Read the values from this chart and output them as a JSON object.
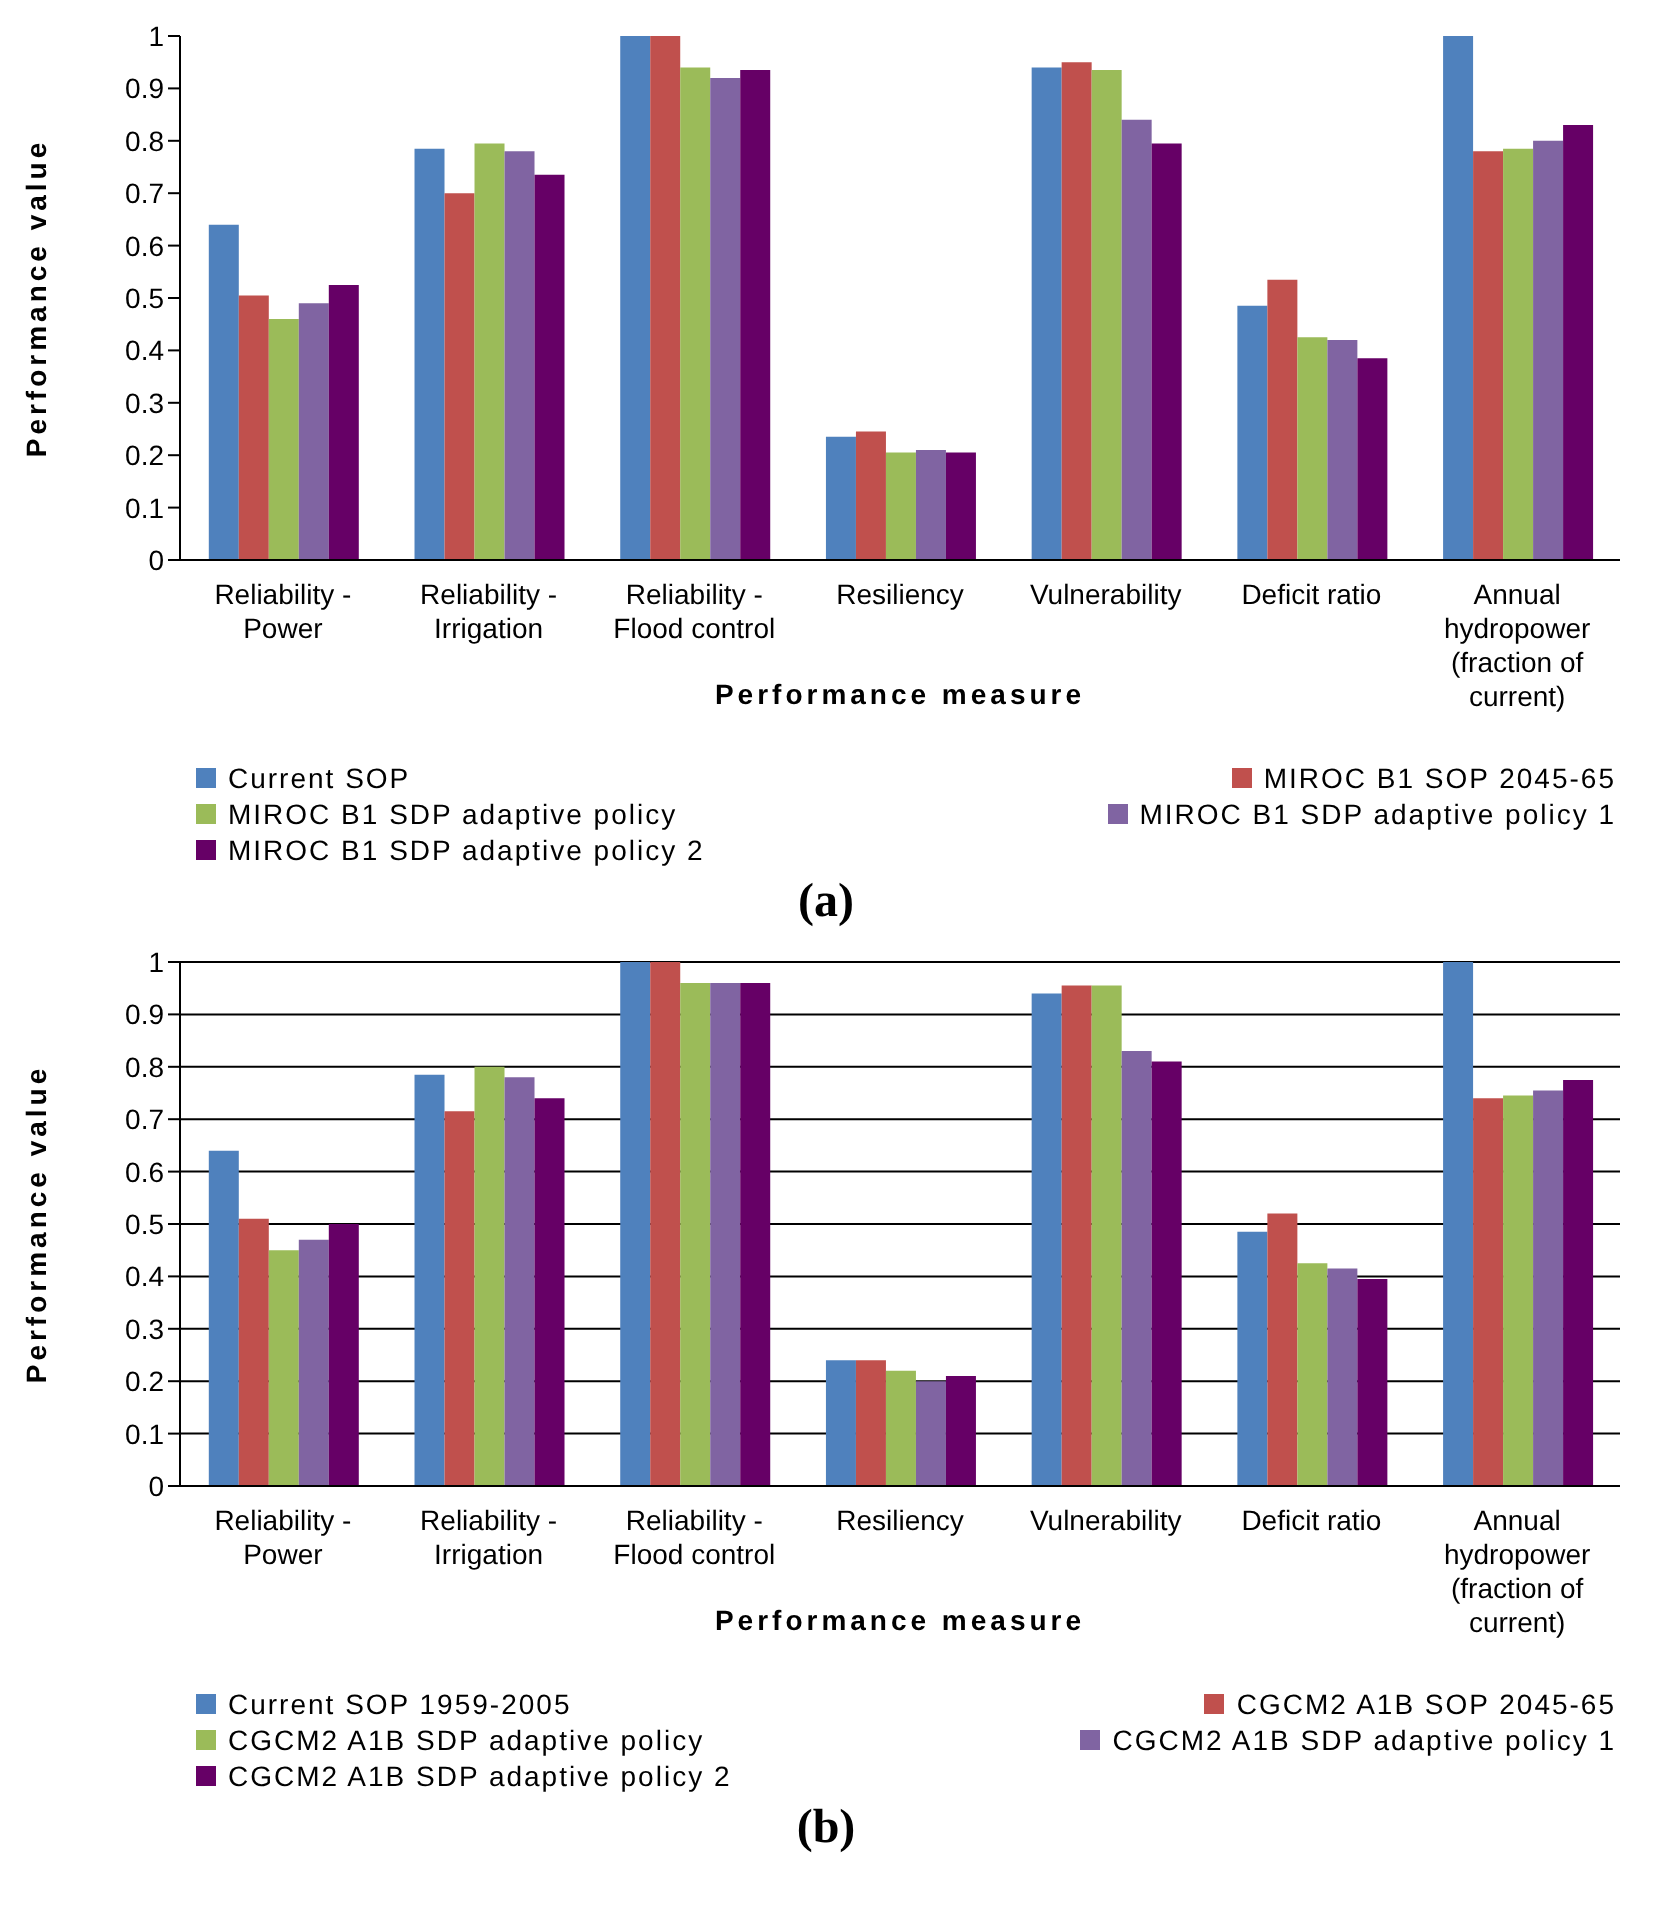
{
  "chart_data": [
    {
      "type": "bar",
      "title": "(a)",
      "xlabel": "Performance measure",
      "ylabel": "Performance value",
      "categories": [
        "Reliability - Power",
        "Reliability - Irrigation",
        "Reliability - Flood control",
        "Resiliency",
        "Vulnerability",
        "Deficit ratio",
        "Annual hydropower (fraction of current)"
      ],
      "series": [
        {
          "name": "Current SOP",
          "color": "#4f81bd",
          "values": [
            0.64,
            0.785,
            1,
            0.235,
            0.94,
            0.485,
            1
          ]
        },
        {
          "name": "MIROC B1 SOP 2045-65",
          "color": "#c0504d",
          "values": [
            0.505,
            0.7,
            1,
            0.245,
            0.95,
            0.535,
            0.78
          ]
        },
        {
          "name": "MIROC B1 SDP adaptive policy",
          "color": "#9bbb59",
          "values": [
            0.46,
            0.795,
            0.94,
            0.205,
            0.935,
            0.425,
            0.785
          ]
        },
        {
          "name": "MIROC B1 SDP adaptive policy 1",
          "color": "#8064a2",
          "values": [
            0.49,
            0.78,
            0.92,
            0.21,
            0.84,
            0.42,
            0.8
          ]
        },
        {
          "name": "MIROC B1 SDP adaptive policy 2",
          "color": "#660066",
          "values": [
            0.525,
            0.735,
            0.935,
            0.205,
            0.795,
            0.385,
            0.83
          ]
        }
      ],
      "ylim": [
        0,
        1
      ],
      "yticks": [
        0,
        0.1,
        0.2,
        0.3,
        0.4,
        0.5,
        0.6,
        0.7,
        0.8,
        0.9,
        1
      ],
      "legend": "bottom"
    },
    {
      "type": "bar",
      "title": "(b)",
      "xlabel": "Performance measure",
      "ylabel": "Performance value",
      "categories": [
        "Reliability - Power",
        "Reliability - Irrigation",
        "Reliability - Flood control",
        "Resiliency",
        "Vulnerability",
        "Deficit ratio",
        "Annual hydropower (fraction of current)"
      ],
      "series": [
        {
          "name": "Current SOP 1959-2005",
          "color": "#4f81bd",
          "values": [
            0.64,
            0.785,
            1,
            0.24,
            0.94,
            0.485,
            1
          ]
        },
        {
          "name": "CGCM2 A1B SOP 2045-65",
          "color": "#c0504d",
          "values": [
            0.51,
            0.715,
            1,
            0.24,
            0.955,
            0.52,
            0.74
          ]
        },
        {
          "name": "CGCM2 A1B SDP adaptive policy",
          "color": "#9bbb59",
          "values": [
            0.45,
            0.8,
            0.96,
            0.22,
            0.955,
            0.425,
            0.745
          ]
        },
        {
          "name": "CGCM2 A1B SDP adaptive policy 1",
          "color": "#8064a2",
          "values": [
            0.47,
            0.78,
            0.96,
            0.2,
            0.83,
            0.415,
            0.755
          ]
        },
        {
          "name": "CGCM2 A1B SDP adaptive policy 2",
          "color": "#660066",
          "values": [
            0.5,
            0.74,
            0.96,
            0.21,
            0.81,
            0.395,
            0.775
          ]
        }
      ],
      "ylim": [
        0,
        1
      ],
      "yticks": [
        0,
        0.1,
        0.2,
        0.3,
        0.4,
        0.5,
        0.6,
        0.7,
        0.8,
        0.9,
        1
      ],
      "grid": "y",
      "legend": "bottom"
    }
  ]
}
